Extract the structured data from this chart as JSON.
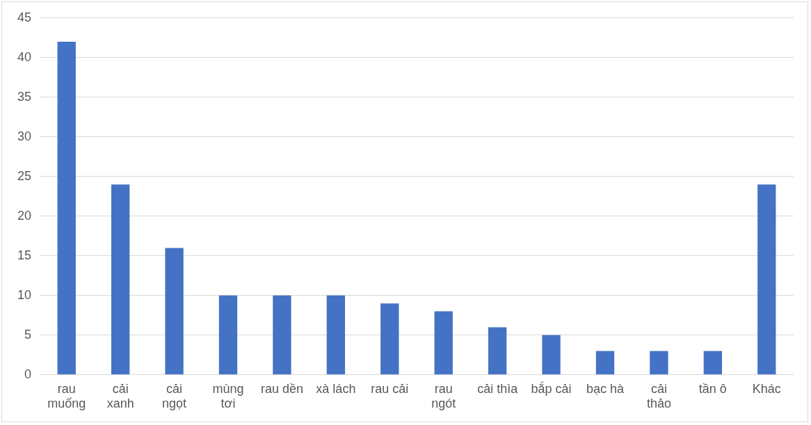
{
  "chart_data": {
    "type": "bar",
    "categories": [
      "rau\nmuống",
      "cải\nxanh",
      "cải\nngọt",
      "mùng\ntơi",
      "rau dền",
      "xà lách",
      "rau cải",
      "rau\nngót",
      "cải thìa",
      "bắp cải",
      "bạc hà",
      "cải\nthảo",
      "tần ô",
      "Khác"
    ],
    "values": [
      42,
      24,
      16,
      10,
      10,
      10,
      9,
      8,
      6,
      5,
      3,
      3,
      3,
      24
    ],
    "color": "#4472c4",
    "ylim": [
      0,
      45
    ],
    "yticks": [
      0,
      5,
      10,
      15,
      20,
      25,
      30,
      35,
      40,
      45
    ],
    "grid": "y",
    "legend": false
  }
}
